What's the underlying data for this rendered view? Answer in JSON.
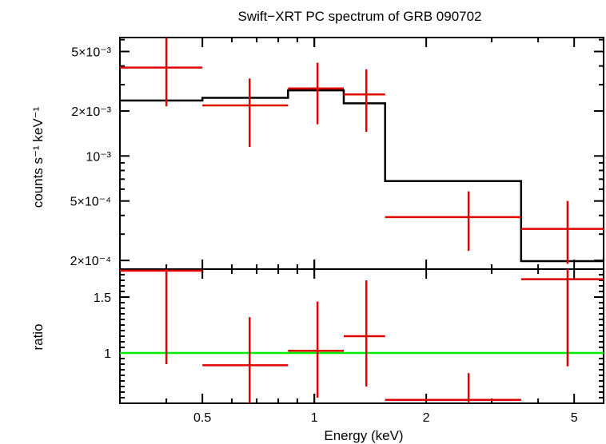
{
  "chart_data": {
    "type": "spectrum",
    "title": "Swift−XRT PC spectrum of GRB 090702",
    "xlabel": "Energy (keV)",
    "xscale": "log",
    "xlim": [
      0.3,
      6.0
    ],
    "x_ticks": [
      {
        "value": 0.5,
        "label": "0.5"
      },
      {
        "value": 1,
        "label": "1"
      },
      {
        "value": 2,
        "label": "2"
      },
      {
        "value": 5,
        "label": "5"
      }
    ],
    "colors": {
      "data": "#e00000",
      "model": "#000000",
      "unity": "#00ee00",
      "axes": "#000000"
    },
    "panels": [
      {
        "name": "spectrum",
        "ylabel": "counts s⁻¹ keV⁻¹",
        "yscale": "log",
        "ylim": [
          0.000175,
          0.0062
        ],
        "y_ticks": [
          {
            "value": 0.005,
            "label": "5×10⁻³"
          },
          {
            "value": 0.002,
            "label": "2×10⁻³"
          },
          {
            "value": 0.001,
            "label": "10⁻³"
          },
          {
            "value": 0.0005,
            "label": "5×10⁻⁴"
          },
          {
            "value": 0.0002,
            "label": "2×10⁻⁴"
          }
        ],
        "data_points": [
          {
            "x": 0.4,
            "xlo": 0.3,
            "xhi": 0.5,
            "y": 0.0039,
            "ylo": 0.00215,
            "yhi": 0.0062
          },
          {
            "x": 0.67,
            "xlo": 0.5,
            "xhi": 0.85,
            "y": 0.00218,
            "ylo": 0.00115,
            "yhi": 0.0033
          },
          {
            "x": 1.02,
            "xlo": 0.85,
            "xhi": 1.2,
            "y": 0.00283,
            "ylo": 0.00163,
            "yhi": 0.0042
          },
          {
            "x": 1.38,
            "xlo": 1.2,
            "xhi": 1.55,
            "y": 0.00258,
            "ylo": 0.00145,
            "yhi": 0.0038
          },
          {
            "x": 2.6,
            "xlo": 1.55,
            "xhi": 3.6,
            "y": 0.00039,
            "ylo": 0.000232,
            "yhi": 0.00058
          },
          {
            "x": 4.8,
            "xlo": 3.6,
            "xhi": 6.0,
            "y": 0.000325,
            "ylo": 0.00019,
            "yhi": 0.0005
          }
        ],
        "model_steps": [
          {
            "xlo": 0.3,
            "xhi": 0.5,
            "y": 0.00235
          },
          {
            "xlo": 0.5,
            "xhi": 0.85,
            "y": 0.00245
          },
          {
            "xlo": 0.85,
            "xhi": 1.2,
            "y": 0.00275
          },
          {
            "xlo": 1.2,
            "xhi": 1.55,
            "y": 0.00225
          },
          {
            "xlo": 1.55,
            "xhi": 3.6,
            "y": 0.00068
          },
          {
            "xlo": 3.6,
            "xhi": 6.0,
            "y": 0.000198
          }
        ]
      },
      {
        "name": "ratio",
        "ylabel": "ratio",
        "yscale": "linear",
        "ylim": [
          0.55,
          1.75
        ],
        "y_ticks": [
          {
            "value": 1.5,
            "label": "1.5"
          },
          {
            "value": 1,
            "label": "1"
          }
        ],
        "unity_line": 1,
        "data_points": [
          {
            "x": 0.4,
            "xlo": 0.3,
            "xhi": 0.5,
            "y": 1.74,
            "ylo": 0.9,
            "yhi": 1.76
          },
          {
            "x": 0.67,
            "xlo": 0.5,
            "xhi": 0.85,
            "y": 0.89,
            "ylo": 0.55,
            "yhi": 1.32
          },
          {
            "x": 1.02,
            "xlo": 0.85,
            "xhi": 1.2,
            "y": 1.02,
            "ylo": 0.6,
            "yhi": 1.46
          },
          {
            "x": 1.38,
            "xlo": 1.2,
            "xhi": 1.55,
            "y": 1.15,
            "ylo": 0.7,
            "yhi": 1.65
          },
          {
            "x": 2.6,
            "xlo": 1.55,
            "xhi": 3.6,
            "y": 0.58,
            "ylo": 0.55,
            "yhi": 0.82
          },
          {
            "x": 4.8,
            "xlo": 3.6,
            "xhi": 6.0,
            "y": 1.66,
            "ylo": 0.88,
            "yhi": 1.75
          }
        ]
      }
    ]
  }
}
